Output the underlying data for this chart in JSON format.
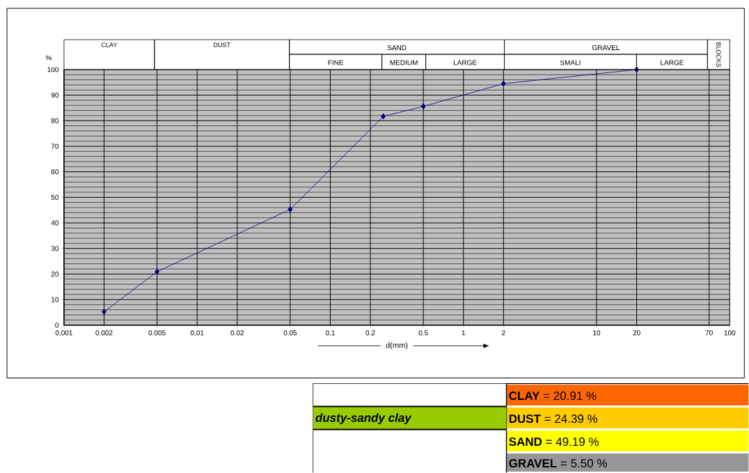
{
  "chart_data": [
    {
      "type": "line",
      "x": [
        0.002,
        0.005,
        0.05,
        0.25,
        0.5,
        2,
        20
      ],
      "values": [
        5.2,
        20.9,
        45.3,
        81.7,
        85.6,
        94.5,
        100
      ],
      "color": "#000080",
      "marker": "diamond",
      "log": "x",
      "grid": true,
      "xlabel": "d(mm)",
      "ylabel": "%",
      "xlim": [
        0.001,
        100
      ],
      "ylim": [
        0,
        100
      ],
      "xticks": [
        {
          "value": 0.001,
          "label": "0,001"
        },
        0.002,
        0.005,
        {
          "value": 0.01,
          "label": "0,01"
        },
        0.02,
        0.05,
        {
          "value": 0.1,
          "label": "0,1"
        },
        0.2,
        0.5,
        1,
        2,
        10,
        20,
        70,
        100
      ],
      "yticks": [
        0,
        10,
        20,
        30,
        40,
        50,
        60,
        70,
        80,
        90,
        100
      ],
      "annotations": [
        "CLAY",
        "DUST",
        "SAND",
        "FINE",
        "MEDIUM",
        "LARGE",
        "GRAVEL",
        "SMALI",
        "LARGE",
        "BLOCKS"
      ]
    },
    {
      "type": "other",
      "title": "dusty-sandy clay",
      "categories": [
        "CLAY",
        "DUST",
        "SAND",
        "GRAVEL"
      ],
      "value_labels": [
        "= 20.91 %",
        "= 24.39 %",
        "= 49.19 %",
        "= 5.50 %"
      ],
      "colors": [
        "#ff6600",
        "#ffcc00",
        "#ffff00",
        "#969696"
      ]
    }
  ]
}
